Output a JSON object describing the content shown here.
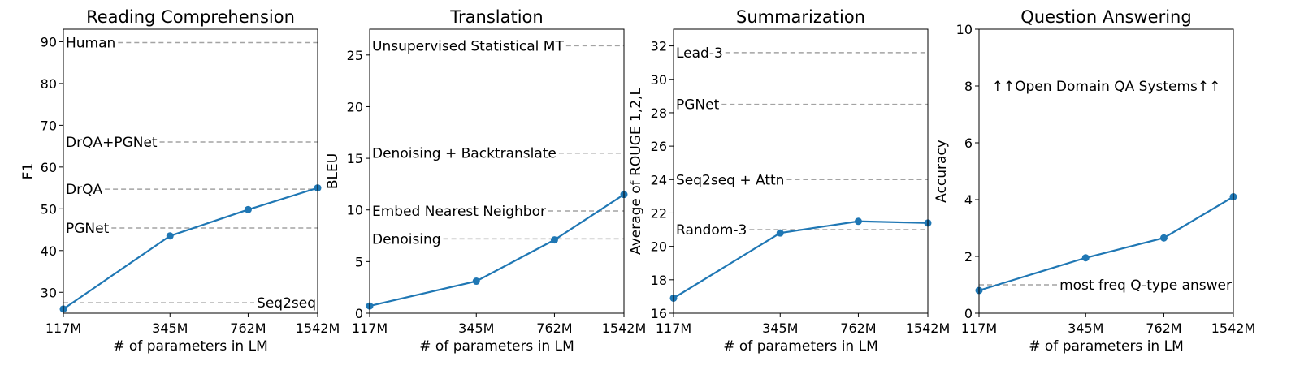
{
  "chart_data": [
    {
      "type": "line",
      "title": "Reading Comprehension",
      "xlabel": "# of parameters in LM",
      "ylabel": "F1",
      "x": [
        "117M",
        "345M",
        "762M",
        "1542M"
      ],
      "ylim": [
        25,
        93
      ],
      "yticks": [
        30,
        40,
        50,
        60,
        70,
        80,
        90
      ],
      "series": [
        {
          "values": [
            26.0,
            43.5,
            49.8,
            55.0
          ],
          "color": "#1f77b4"
        }
      ],
      "references": [
        {
          "label": "Human",
          "value": 89.8,
          "label_align": "left"
        },
        {
          "label": "DrQA+PGNet",
          "value": 66.0,
          "label_align": "left"
        },
        {
          "label": "DrQA",
          "value": 54.7,
          "label_align": "left"
        },
        {
          "label": "PGNet",
          "value": 45.4,
          "label_align": "left"
        },
        {
          "label": "Seq2seq",
          "value": 27.5,
          "label_align": "right"
        }
      ]
    },
    {
      "type": "line",
      "title": "Translation",
      "xlabel": "# of parameters in LM",
      "ylabel": "BLEU",
      "x": [
        "117M",
        "345M",
        "762M",
        "1542M"
      ],
      "ylim": [
        0,
        27.5
      ],
      "yticks": [
        0,
        5,
        10,
        15,
        20,
        25
      ],
      "series": [
        {
          "values": [
            0.7,
            3.1,
            7.1,
            11.5
          ],
          "color": "#1f77b4"
        }
      ],
      "references": [
        {
          "label": "Unsupervised Statistical MT",
          "value": 25.9,
          "label_align": "left"
        },
        {
          "label": "Denoising + Backtranslate",
          "value": 15.5,
          "label_align": "left"
        },
        {
          "label": "Embed Nearest Neighbor",
          "value": 9.9,
          "label_align": "left"
        },
        {
          "label": "Denoising",
          "value": 7.2,
          "label_align": "left"
        }
      ]
    },
    {
      "type": "line",
      "title": "Summarization",
      "xlabel": "# of parameters in LM",
      "ylabel": "Average of ROUGE 1,2,L",
      "x": [
        "117M",
        "345M",
        "762M",
        "1542M"
      ],
      "ylim": [
        16,
        33
      ],
      "yticks": [
        16,
        18,
        20,
        22,
        24,
        26,
        28,
        30,
        32
      ],
      "series": [
        {
          "values": [
            16.9,
            20.8,
            21.5,
            21.4
          ],
          "color": "#1f77b4"
        }
      ],
      "references": [
        {
          "label": "Lead-3",
          "value": 31.6,
          "label_align": "left"
        },
        {
          "label": "PGNet",
          "value": 28.5,
          "label_align": "left"
        },
        {
          "label": "Seq2seq + Attn",
          "value": 24.0,
          "label_align": "left"
        },
        {
          "label": "Random-3",
          "value": 21.0,
          "label_align": "left"
        }
      ]
    },
    {
      "type": "line",
      "title": "Question Answering",
      "xlabel": "# of parameters in LM",
      "ylabel": "Accuracy",
      "x": [
        "117M",
        "345M",
        "762M",
        "1542M"
      ],
      "ylim": [
        0,
        10
      ],
      "yticks": [
        0,
        2,
        4,
        6,
        8,
        10
      ],
      "series": [
        {
          "values": [
            0.8,
            1.95,
            2.65,
            4.1
          ],
          "color": "#1f77b4"
        }
      ],
      "references": [
        {
          "label": "most freq Q-type answer",
          "value": 1.0,
          "label_align": "right"
        }
      ],
      "annotations": [
        {
          "text": "↑↑Open Domain QA Systems↑↑",
          "value": 8.0
        }
      ]
    }
  ]
}
